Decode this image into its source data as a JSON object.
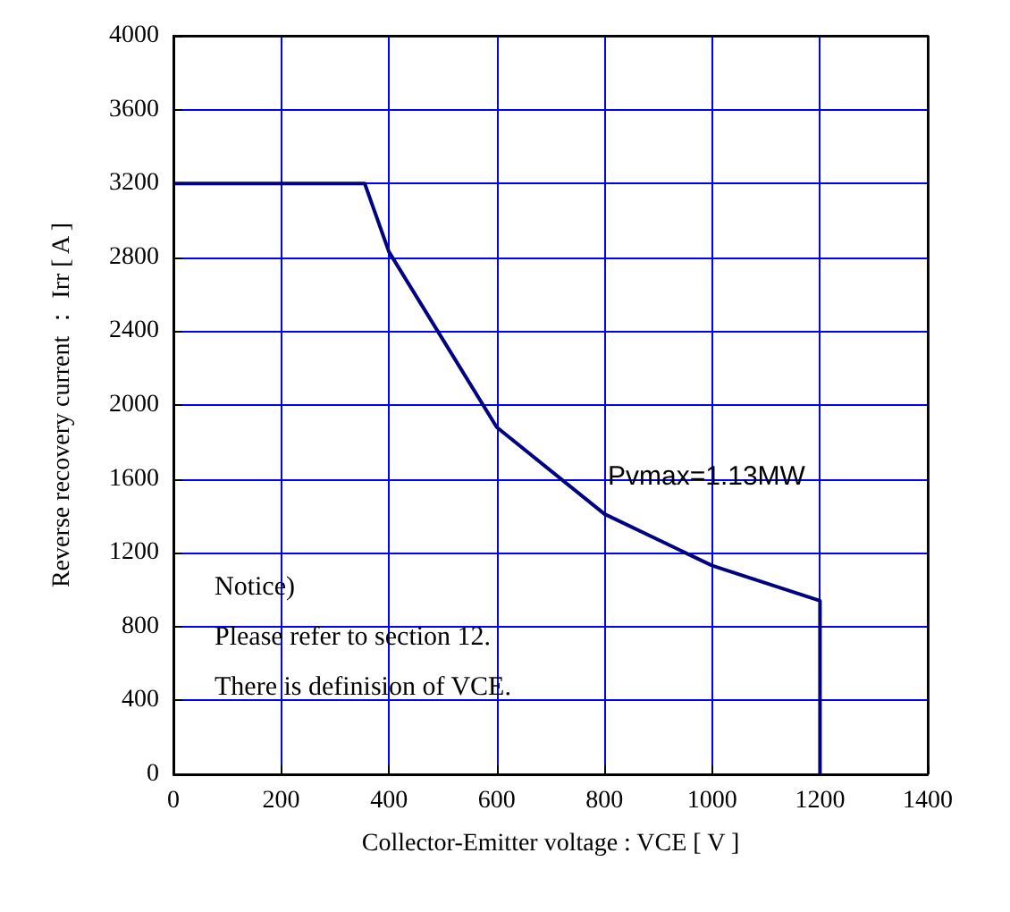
{
  "chart_data": {
    "type": "line",
    "xlabel": "Collector-Emitter voltage : VCE [ V ]",
    "ylabel": "Reverse recovery current ： Irr [ A ]",
    "x": [
      0,
      355,
      400,
      600,
      800,
      1000,
      1200,
      1200
    ],
    "series": [
      {
        "color": "#000080",
        "values": [
          3200,
          3200,
          2830,
          1880,
          1410,
          1130,
          940,
          0
        ]
      }
    ],
    "xlim": [
      0,
      1400
    ],
    "xticks": [
      0,
      200,
      400,
      600,
      800,
      1000,
      1200,
      1400
    ],
    "ylim": [
      0,
      4000
    ],
    "yticks": [
      0,
      400,
      800,
      1200,
      1600,
      2000,
      2400,
      2800,
      3200,
      3600,
      4000
    ],
    "grid": true,
    "marker": "none",
    "line_style": "solid",
    "annotations": [
      "Pvmax=1.13MW",
      "Notice)",
      "Please refer to section 12.",
      "There is definision of VCE."
    ]
  }
}
